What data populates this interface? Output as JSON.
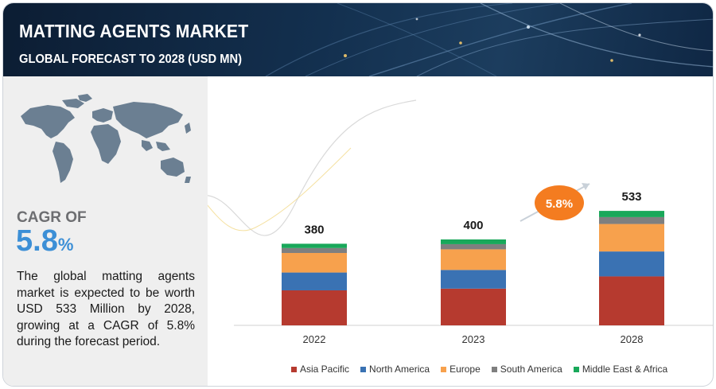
{
  "header": {
    "title": "MATTING AGENTS MARKET",
    "subtitle": "GLOBAL FORECAST TO 2028 (USD MN)"
  },
  "left": {
    "cagr_label": "CAGR OF",
    "cagr_number": "5.8",
    "cagr_percent_sign": "%",
    "description": "The global matting agents market is expected to be worth USD 533 Million by 2028, growing at a CAGR of 5.8% during the forecast period.",
    "map_icon": "world-map-icon"
  },
  "chart_data": {
    "type": "bar",
    "stacked": true,
    "categories": [
      "2022",
      "2023",
      "2028"
    ],
    "totals": [
      380,
      400,
      533
    ],
    "series": [
      {
        "name": "Asia Pacific",
        "color": "#b63a2f",
        "values": [
          163,
          171,
          228
        ]
      },
      {
        "name": "North America",
        "color": "#3a72b3",
        "values": [
          83,
          87,
          116
        ]
      },
      {
        "name": "Europe",
        "color": "#f7a14d",
        "values": [
          91,
          96,
          128
        ]
      },
      {
        "name": "South America",
        "color": "#7f7f7f",
        "values": [
          23,
          24,
          32
        ]
      },
      {
        "name": "Middle East & Africa",
        "color": "#19a85a",
        "values": [
          20,
          22,
          29
        ]
      }
    ],
    "growth_badge": "5.8%",
    "badge_color": "#f47c20",
    "legend_position": "bottom",
    "grid": false
  }
}
